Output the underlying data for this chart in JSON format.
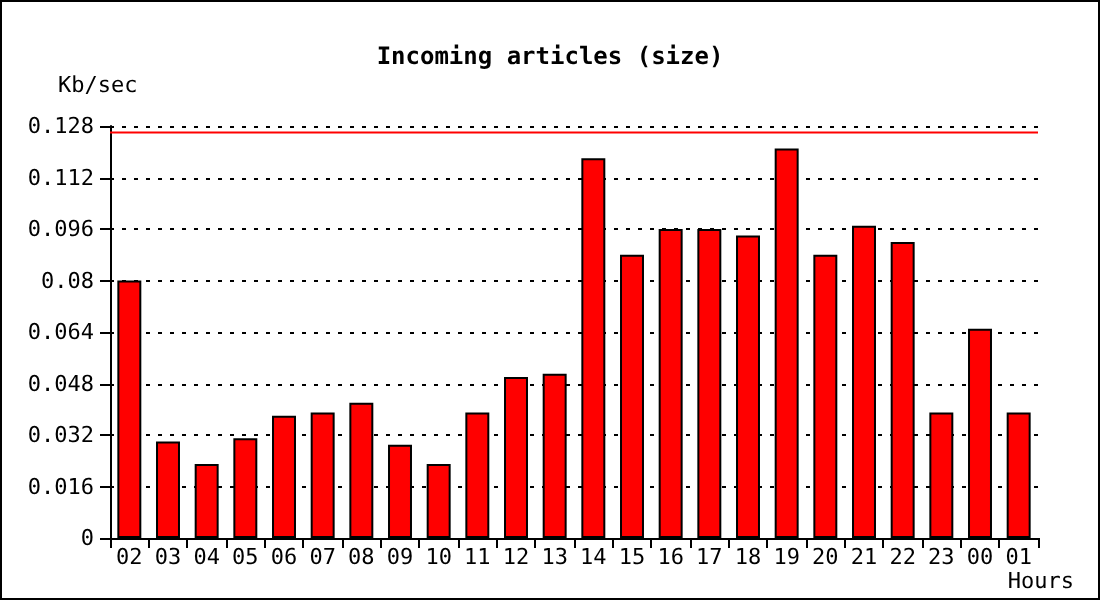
{
  "chart_data": {
    "type": "bar",
    "title": "Incoming articles (size)",
    "xlabel": "Hours",
    "ylabel": "Kb/sec",
    "categories": [
      "02",
      "03",
      "04",
      "05",
      "06",
      "07",
      "08",
      "09",
      "10",
      "11",
      "12",
      "13",
      "14",
      "15",
      "16",
      "17",
      "18",
      "19",
      "20",
      "21",
      "22",
      "23",
      "00",
      "01"
    ],
    "values": [
      0.08,
      0.03,
      0.023,
      0.031,
      0.038,
      0.039,
      0.042,
      0.029,
      0.023,
      0.039,
      0.05,
      0.051,
      0.118,
      0.088,
      0.096,
      0.096,
      0.094,
      0.121,
      0.088,
      0.097,
      0.092,
      0.039,
      0.065,
      0.039
    ],
    "color": "#ff0000",
    "ylim": [
      0,
      0.128
    ],
    "yticks": [
      0,
      0.016,
      0.032,
      0.048,
      0.064,
      0.08,
      0.096,
      0.112,
      0.128
    ],
    "grid": "y",
    "ref_lines": [
      {
        "axis": "y",
        "value": 0.126,
        "color": "#ff0000",
        "line_style": "solid"
      }
    ]
  }
}
